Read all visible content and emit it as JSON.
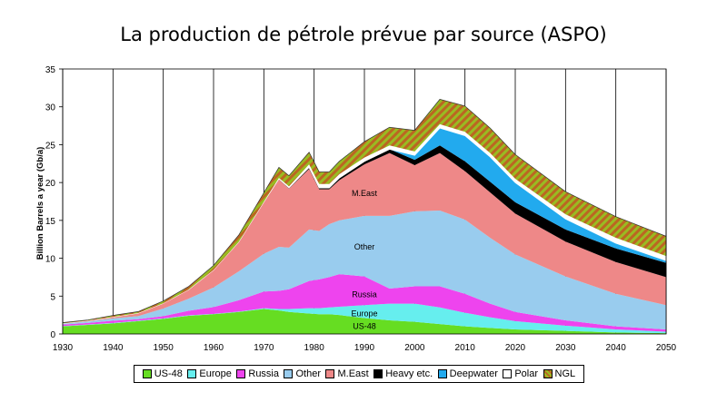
{
  "chart_data": {
    "type": "area",
    "stacked": true,
    "title": "La production de pétrole prévue par source (ASPO)",
    "xlabel": "",
    "ylabel": "Billion Barrels a year (Gb/a)",
    "xlim": [
      1930,
      2050
    ],
    "ylim": [
      0,
      35
    ],
    "x_ticks": [
      "1930",
      "1940",
      "1950",
      "1960",
      "1970",
      "1980",
      "1990",
      "2000",
      "2010",
      "2020",
      "2030",
      "2040",
      "2050"
    ],
    "y_ticks": [
      "0",
      "5",
      "10",
      "15",
      "20",
      "25",
      "30",
      "35"
    ],
    "grid": "vertical",
    "legend_position": "bottom",
    "x": [
      1930,
      1935,
      1940,
      1945,
      1950,
      1955,
      1960,
      1965,
      1970,
      1973,
      1975,
      1979,
      1981,
      1983,
      1985,
      1990,
      1995,
      2000,
      2005,
      2010,
      2015,
      2020,
      2030,
      2040,
      2050
    ],
    "series": [
      {
        "name": "US-48",
        "color": "#66dd22",
        "values": [
          1.0,
          1.2,
          1.4,
          1.7,
          2.0,
          2.4,
          2.6,
          2.9,
          3.3,
          3.1,
          2.9,
          2.7,
          2.6,
          2.6,
          2.5,
          2.1,
          1.8,
          1.6,
          1.3,
          1.0,
          0.8,
          0.6,
          0.4,
          0.2,
          0.1
        ]
      },
      {
        "name": "Europe",
        "color": "#66eeee",
        "values": [
          0.05,
          0.05,
          0.05,
          0.05,
          0.05,
          0.05,
          0.05,
          0.05,
          0.1,
          0.2,
          0.4,
          0.7,
          0.8,
          0.9,
          1.1,
          1.7,
          2.2,
          2.4,
          2.2,
          1.8,
          1.4,
          1.1,
          0.7,
          0.4,
          0.2
        ]
      },
      {
        "name": "Russia",
        "color": "#ee44ee",
        "values": [
          0.2,
          0.2,
          0.3,
          0.2,
          0.3,
          0.6,
          0.9,
          1.5,
          2.2,
          2.4,
          2.6,
          3.6,
          3.8,
          4.0,
          4.3,
          3.8,
          2.0,
          2.3,
          2.8,
          2.5,
          1.8,
          1.2,
          0.7,
          0.4,
          0.3
        ]
      },
      {
        "name": "Other",
        "color": "#99ccee",
        "values": [
          0.1,
          0.2,
          0.3,
          0.4,
          1.0,
          1.6,
          2.6,
          3.8,
          5.0,
          5.8,
          5.5,
          6.8,
          6.4,
          7.0,
          7.1,
          8.0,
          9.6,
          9.9,
          10.0,
          9.8,
          8.7,
          7.6,
          5.8,
          4.3,
          3.2
        ]
      },
      {
        "name": "M.East",
        "color": "#ee8888",
        "values": [
          0.05,
          0.1,
          0.2,
          0.4,
          0.7,
          1.2,
          2.3,
          3.9,
          6.8,
          8.9,
          7.8,
          8.0,
          5.5,
          4.6,
          5.3,
          6.8,
          8.3,
          6.1,
          7.6,
          6.4,
          6.0,
          5.4,
          4.6,
          4.2,
          3.7
        ]
      },
      {
        "name": "Heavy etc.",
        "color": "#000000",
        "values": [
          0,
          0,
          0,
          0,
          0,
          0,
          0,
          0,
          0.05,
          0.1,
          0.1,
          0.2,
          0.2,
          0.2,
          0.3,
          0.4,
          0.5,
          0.7,
          1.0,
          1.3,
          1.4,
          1.5,
          1.6,
          1.8,
          1.9
        ]
      },
      {
        "name": "Deepwater",
        "color": "#22aaee",
        "values": [
          0,
          0,
          0,
          0,
          0,
          0,
          0,
          0,
          0,
          0,
          0,
          0,
          0,
          0,
          0,
          0,
          0,
          0.6,
          2.3,
          3.4,
          3.3,
          2.6,
          1.4,
          0.7,
          0.3
        ]
      },
      {
        "name": "Polar",
        "color": "#ffffff",
        "values": [
          0,
          0,
          0,
          0,
          0,
          0,
          0,
          0,
          0,
          0.1,
          0.2,
          0.4,
          0.5,
          0.5,
          0.5,
          0.5,
          0.5,
          0.5,
          0.5,
          0.5,
          0.5,
          0.5,
          0.6,
          0.7,
          0.6
        ]
      },
      {
        "name": "NGL",
        "color": "#bb6622",
        "values": [
          0.1,
          0.1,
          0.2,
          0.2,
          0.3,
          0.4,
          0.6,
          0.9,
          1.2,
          1.4,
          1.4,
          1.6,
          1.6,
          1.6,
          1.7,
          2.1,
          2.4,
          2.8,
          3.3,
          3.4,
          3.3,
          3.2,
          3.0,
          2.8,
          2.6
        ]
      }
    ],
    "annotations": [
      {
        "text": "US-48",
        "x": 1990,
        "y": 1.0
      },
      {
        "text": "Europe",
        "x": 1990,
        "y": 2.7
      },
      {
        "text": "Russia",
        "x": 1990,
        "y": 5.2
      },
      {
        "text": "Other",
        "x": 1990,
        "y": 11.5
      },
      {
        "text": "M.East",
        "x": 1990,
        "y": 18.6
      }
    ]
  }
}
